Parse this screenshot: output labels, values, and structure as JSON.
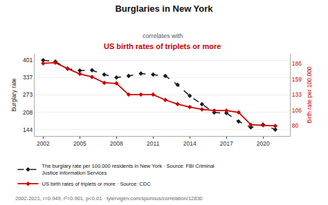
{
  "chart_data": {
    "type": "line",
    "title": "Burglaries in New York",
    "subtitle": [
      "correlates with",
      "US birth rates of triplets or more"
    ],
    "x": [
      2002,
      2003,
      2004,
      2005,
      2006,
      2007,
      2008,
      2009,
      2010,
      2011,
      2012,
      2013,
      2014,
      2015,
      2016,
      2017,
      2018,
      2019,
      2020,
      2021
    ],
    "series": [
      {
        "name": "The burglary rate per 100,000 residents in New York · Source: FBI Criminal\nJustice Information Services",
        "color": "#1a1a1a",
        "line_style": "dashed",
        "marker": "diamond",
        "values": [
          401,
          396,
          370,
          363,
          364,
          348,
          337,
          343,
          352,
          348,
          343,
          310,
          269,
          238,
          207,
          205,
          174,
          152,
          162,
          144
        ]
      },
      {
        "name": "US birth rates of triplets or more · Source: CDC",
        "color": "#cc0000",
        "line_style": "solid",
        "marker": "diamond",
        "axis": "y2",
        "values": [
          186,
          187,
          177,
          168,
          163,
          153,
          152,
          133,
          133,
          133,
          124,
          117,
          112,
          108,
          106,
          106,
          103,
          82,
          81,
          80
        ]
      }
    ],
    "ylabel": "Burglary rate",
    "y2label": "Birth rate per 100,000",
    "xlim": [
      2001.3,
      2022.2
    ],
    "xticks": [
      2002,
      2005,
      2008,
      2011,
      2014,
      2017,
      2020
    ],
    "ylim": [
      120,
      425
    ],
    "yticks": [
      144,
      208,
      273,
      337,
      401
    ],
    "y2lim": [
      63,
      202
    ],
    "y2ticks": [
      80,
      106,
      133,
      159,
      186
    ],
    "grid": true,
    "legend": "bottom",
    "annotations": [
      "2002-2021, r=0.949, r²=0.901, p<0.01 · tylervigen.com/spurious/correlation/12830"
    ]
  }
}
